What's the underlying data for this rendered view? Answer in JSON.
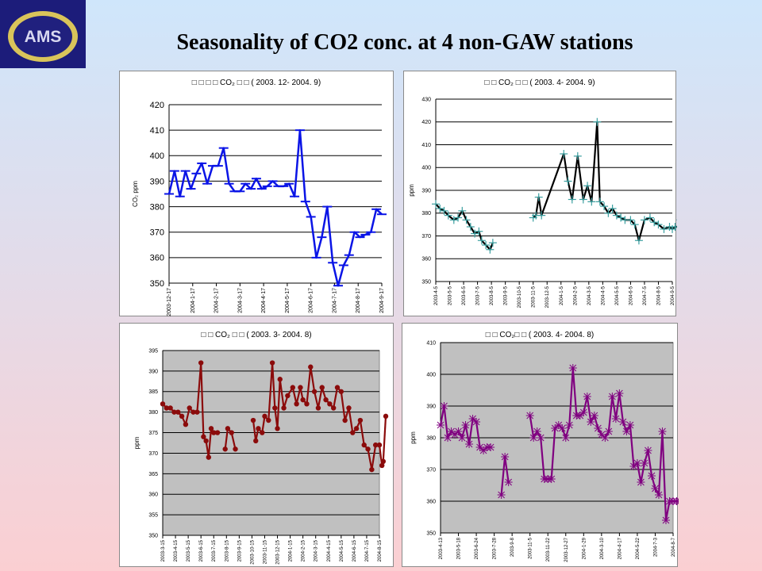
{
  "slide": {
    "title": "Seasonality of CO2 conc. at 4 non-GAW stations"
  },
  "logo": {
    "text": "AMS",
    "colors": {
      "ring": "#d9c45a",
      "bg": "#1c1c7a",
      "text": "#d8d8f0"
    }
  },
  "chart_data": [
    {
      "type": "line",
      "panel_title": "□ □ □ □   CO₂ □ □ ( 2003. 12- 2004. 9)",
      "ylabel": "CO₂ ppm",
      "ylim": [
        350,
        420
      ],
      "yticks": [
        350,
        360,
        370,
        380,
        390,
        400,
        410,
        420
      ],
      "x_tick_labels": [
        "2003-12-17",
        "2004-1-17",
        "2004-2-17",
        "2004-3-17",
        "2004-4-17",
        "2004-5-17",
        "2004-6-17",
        "2004-7-17",
        "2004-8-17",
        "2004-9-17"
      ],
      "color": "#0a14e6",
      "marker": "dash",
      "plot_bg": "#ffffff",
      "series": [
        {
          "values": [
            385,
            394,
            384,
            394,
            387,
            393,
            397,
            389,
            396,
            396,
            403,
            389,
            386,
            386,
            389,
            387,
            391,
            387,
            388,
            390,
            388,
            388,
            389,
            384,
            410,
            382,
            376,
            360,
            368,
            380,
            358,
            349,
            357,
            361,
            370,
            368,
            369,
            370,
            379,
            377
          ]
        }
      ]
    },
    {
      "type": "line",
      "panel_title": "□ □   CO₂ □ □ ( 2003. 4- 2004. 9)",
      "ylabel": "ppm",
      "ylim": [
        350,
        430
      ],
      "yticks": [
        350,
        360,
        370,
        380,
        390,
        400,
        410,
        420,
        430
      ],
      "x_tick_labels": [
        "2003-4-5",
        "2003-5-5",
        "2003-6-5",
        "2003-7-5",
        "2003-8-5",
        "2003-9-5",
        "2003-10-5",
        "2003-11-5",
        "2003-12-5",
        "2004-1-5",
        "2004-2-5",
        "2004-3-5",
        "2004-4-5",
        "2004-5-5",
        "2004-6-5",
        "2004-7-5",
        "2004-8-5",
        "2004-9-5"
      ],
      "color": "#000000",
      "marker_color": "#3a9fa0",
      "marker": "plus",
      "plot_bg": "#ffffff",
      "segments": [
        {
          "x": [
            0.0,
            0.3,
            0.6,
            0.9,
            1.3,
            1.6,
            1.9,
            2.2,
            2.5,
            2.8,
            3.1,
            3.3,
            3.6,
            3.9,
            4.1
          ],
          "y": [
            384,
            382,
            381,
            379,
            377,
            378,
            381,
            377,
            374,
            371,
            372,
            368,
            366,
            364,
            367
          ]
        },
        {
          "x": [
            7.0,
            7.2,
            7.4,
            7.6,
            9.2,
            9.5,
            9.8,
            10.2,
            10.6,
            10.9,
            11.2,
            11.6,
            11.8,
            12.1,
            12.4,
            12.7,
            13.0,
            13.3,
            13.6,
            14.0,
            14.3,
            14.6,
            15.0,
            15.4,
            15.7,
            16.0,
            16.4,
            16.8,
            17.0,
            17.2,
            17.4,
            17.6
          ],
          "y": [
            378,
            379,
            387,
            379,
            406,
            394,
            386,
            405,
            386,
            392,
            385,
            420,
            385,
            383,
            380,
            382,
            379,
            378,
            377,
            377,
            375,
            368,
            377,
            378,
            376,
            375,
            373,
            374,
            373,
            374,
            374,
            377
          ]
        }
      ]
    },
    {
      "type": "line",
      "panel_title": "□ □  CO₂ □ □ ( 2003. 3- 2004. 8)",
      "ylabel": "ppm",
      "ylim": [
        350,
        395
      ],
      "yticks": [
        350,
        355,
        360,
        365,
        370,
        375,
        380,
        385,
        390,
        395
      ],
      "x_tick_labels": [
        "2003-3-15",
        "2003-4-15",
        "2003-5-15",
        "2003-6-15",
        "2003-7-15",
        "2003-8-15",
        "2003-9-15",
        "2003-10-15",
        "2003-11-15",
        "2003-12-15",
        "2004-1-15",
        "2004-2-15",
        "2004-3-15",
        "2004-4-15",
        "2004-5-15",
        "2004-6-15",
        "2004-7-15",
        "2004-8-15"
      ],
      "color": "#8b0b0b",
      "marker": "dot",
      "plot_bg": "#c0c0c0",
      "segments": [
        {
          "x": [
            0.0,
            0.3,
            0.6,
            0.9,
            1.2,
            1.5,
            1.8,
            2.1,
            2.4,
            2.7,
            3.0,
            3.2,
            3.4,
            3.6,
            3.8,
            4.0,
            4.3
          ],
          "y": [
            382,
            381,
            381,
            380,
            380,
            379,
            377,
            381,
            380,
            380,
            392,
            374,
            373,
            369,
            376,
            375,
            375
          ]
        },
        {
          "x": [
            4.9,
            5.1,
            5.4,
            5.7
          ],
          "y": [
            371,
            376,
            375,
            371
          ]
        },
        {
          "x": [
            7.1,
            7.3,
            7.5,
            7.8,
            8.0,
            8.3,
            8.6,
            8.8,
            9.0,
            9.2,
            9.5,
            9.8,
            10.2,
            10.5,
            10.8,
            11.0,
            11.3,
            11.6,
            11.9,
            12.2,
            12.5,
            12.8,
            13.1,
            13.4,
            13.7,
            14.0,
            14.3,
            14.6,
            14.9,
            15.2,
            15.5,
            15.8,
            16.1,
            16.4,
            16.7,
            17.0,
            17.2
          ],
          "y": [
            378,
            373,
            376,
            375,
            379,
            378,
            392,
            381,
            376,
            388,
            381,
            384,
            386,
            382,
            386,
            383,
            382,
            391,
            385,
            381,
            386,
            383,
            382,
            381,
            386,
            385,
            378,
            381,
            375,
            376,
            378,
            372,
            371,
            366,
            372,
            372,
            367
          ]
        },
        {
          "x": [
            17.3,
            17.5
          ],
          "y": [
            368,
            379
          ]
        }
      ]
    },
    {
      "type": "line",
      "panel_title": "□ □ CO₂□ □ ( 2003. 4- 2004. 8)",
      "ylabel": "ppm",
      "ylim": [
        350,
        410
      ],
      "yticks": [
        350,
        360,
        370,
        380,
        390,
        400,
        410
      ],
      "x_tick_labels": [
        "2003-4-13",
        "2003-5-18",
        "2003-6-24",
        "2003-7-28",
        "2003-9-8",
        "2003-11-5",
        "2003-11-22",
        "2003-12-27",
        "2004-1-29",
        "2004-3-10",
        "2004-4-17",
        "2004-5-22",
        "2004-7-3",
        "2004-8-7"
      ],
      "color": "#800080",
      "marker": "star",
      "plot_bg": "#c0c0c0",
      "segments": [
        {
          "x": [
            0.0,
            0.2,
            0.4,
            0.6,
            0.8,
            1.0,
            1.2,
            1.4,
            1.6,
            1.8,
            2.0,
            2.2,
            2.4,
            2.6,
            2.8
          ],
          "y": [
            384,
            390,
            380,
            382,
            381,
            382,
            380,
            384,
            378,
            386,
            385,
            377,
            376,
            377,
            377
          ]
        },
        {
          "x": [
            3.4,
            3.6,
            3.8
          ],
          "y": [
            362,
            374,
            366
          ]
        },
        {
          "x": [
            5.0,
            5.2,
            5.4,
            5.6,
            5.8,
            6.0,
            6.2,
            6.4,
            6.6,
            6.8,
            7.0,
            7.2,
            7.4,
            7.6,
            7.8,
            8.0,
            8.2,
            8.4,
            8.6,
            8.8,
            9.0,
            9.2,
            9.4,
            9.6,
            9.8,
            10.0,
            10.2,
            10.4,
            10.6,
            10.8,
            11.0,
            11.2,
            11.4,
            11.6,
            11.8,
            12.0,
            12.2,
            12.4,
            12.6,
            12.8,
            13.0,
            13.2,
            13.4
          ],
          "y": [
            387,
            380,
            382,
            380,
            367,
            367,
            367,
            383,
            384,
            383,
            380,
            384,
            402,
            387,
            387,
            388,
            393,
            385,
            387,
            383,
            381,
            380,
            382,
            393,
            386,
            394,
            385,
            382,
            384,
            371,
            372,
            366,
            372,
            376,
            368,
            364,
            362,
            382,
            354,
            360,
            360,
            360,
            360
          ]
        }
      ]
    }
  ]
}
